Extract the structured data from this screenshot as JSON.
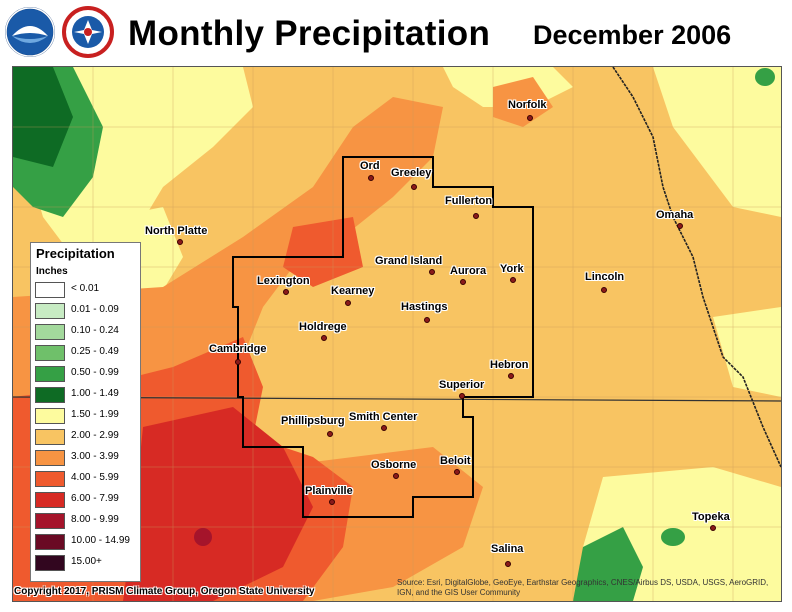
{
  "header": {
    "title": "Monthly Precipitation",
    "date": "December 2006",
    "logos": [
      "noaa-logo",
      "national-weather-service-logo"
    ]
  },
  "map": {
    "cities": [
      {
        "name": "Norfolk",
        "id": "norfolk"
      },
      {
        "name": "Ord",
        "id": "ord"
      },
      {
        "name": "Greeley",
        "id": "greeley"
      },
      {
        "name": "Fullerton",
        "id": "fullerton"
      },
      {
        "name": "Omaha",
        "id": "omaha"
      },
      {
        "name": "North Platte",
        "id": "north-platte"
      },
      {
        "name": "Grand Island",
        "id": "grand-island"
      },
      {
        "name": "Aurora",
        "id": "aurora"
      },
      {
        "name": "York",
        "id": "york"
      },
      {
        "name": "Lincoln",
        "id": "lincoln"
      },
      {
        "name": "Lexington",
        "id": "lexington"
      },
      {
        "name": "Kearney",
        "id": "kearney"
      },
      {
        "name": "Hastings",
        "id": "hastings"
      },
      {
        "name": "Holdrege",
        "id": "holdrege"
      },
      {
        "name": "Cambridge",
        "id": "cambridge"
      },
      {
        "name": "Hebron",
        "id": "hebron"
      },
      {
        "name": "Superior",
        "id": "superior"
      },
      {
        "name": "Phillipsburg",
        "id": "phillipsburg"
      },
      {
        "name": "Smith Center",
        "id": "smith-center"
      },
      {
        "name": "Beloit",
        "id": "beloit"
      },
      {
        "name": "Osborne",
        "id": "osborne"
      },
      {
        "name": "Plainville",
        "id": "plainville"
      },
      {
        "name": "Topeka",
        "id": "topeka"
      },
      {
        "name": "Salina",
        "id": "salina"
      }
    ]
  },
  "legend": {
    "title": "Precipitation",
    "units": "Inches",
    "items": [
      {
        "label": "< 0.01",
        "color": "#ffffff"
      },
      {
        "label": "0.01 - 0.09",
        "color": "#c7ebc3"
      },
      {
        "label": "0.10 - 0.24",
        "color": "#a3d99c"
      },
      {
        "label": "0.25 - 0.49",
        "color": "#6fc06a"
      },
      {
        "label": "0.50 - 0.99",
        "color": "#35a045"
      },
      {
        "label": "1.00 - 1.49",
        "color": "#0e6b24"
      },
      {
        "label": "1.50 - 1.99",
        "color": "#fdfb9e"
      },
      {
        "label": "2.00 - 2.99",
        "color": "#f8c462"
      },
      {
        "label": "3.00 - 3.99",
        "color": "#f79443"
      },
      {
        "label": "4.00 - 5.99",
        "color": "#ef5a2e"
      },
      {
        "label": "6.00 - 7.99",
        "color": "#d72a24"
      },
      {
        "label": "8.00 - 9.99",
        "color": "#a5142b"
      },
      {
        "label": "10.00 - 14.99",
        "color": "#6a0a24"
      },
      {
        "label": "15.00+",
        "color": "#32061f"
      }
    ]
  },
  "footer": {
    "copyright": "Copyright 2017, PRISM Climate Group, Oregon State University",
    "credits": "Source: Esri, DigitalGlobe, GeoEye, Earthstar Geographics, CNES/Airbus DS, USDA, USGS, AeroGRID, IGN, and the GIS User Community"
  }
}
